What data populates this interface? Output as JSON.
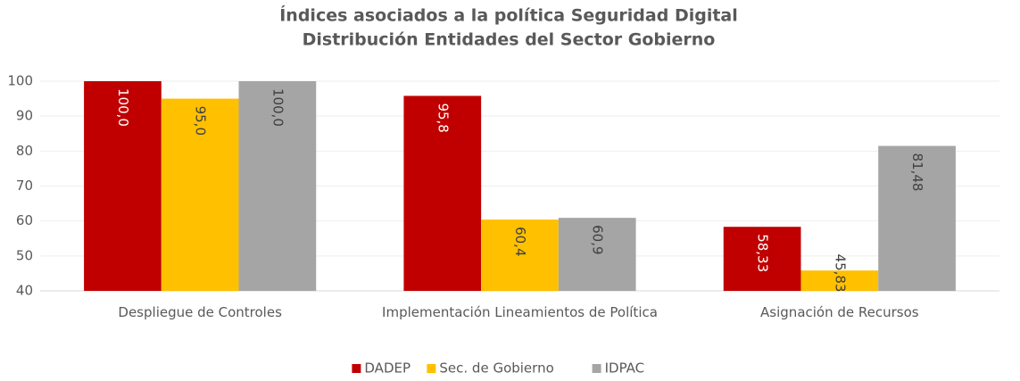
{
  "chart_data": {
    "type": "bar",
    "title": "Índices asociados a la política Seguridad Digital",
    "subtitle": "Distribución Entidades del Sector Gobierno",
    "categories": [
      "Despliegue de Controles",
      "Implementación Lineamientos de Política",
      "Asignación de Recursos"
    ],
    "series": [
      {
        "name": "DADEP",
        "color": "#c00000",
        "values": [
          100.0,
          95.8,
          58.33
        ],
        "value_labels": [
          "100,0",
          "95,8",
          "58,33"
        ]
      },
      {
        "name": "Sec. de Gobierno",
        "color": "#ffc000",
        "values": [
          95.0,
          60.4,
          45.83
        ],
        "value_labels": [
          "95,0",
          "60,4",
          "45,83"
        ]
      },
      {
        "name": "IDPAC",
        "color": "#a5a5a5",
        "values": [
          100.0,
          60.9,
          81.48
        ],
        "value_labels": [
          "100,0",
          "60,9",
          "81,48"
        ]
      }
    ],
    "ylim": [
      40,
      100
    ],
    "yticks": [
      40,
      50,
      60,
      70,
      80,
      90,
      100
    ],
    "grid": true,
    "legend": "bottom"
  }
}
